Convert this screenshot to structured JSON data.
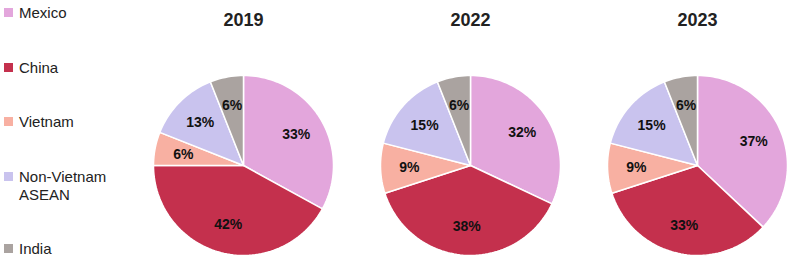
{
  "chart_data": {
    "type": "pie",
    "categories": [
      "Mexico",
      "China",
      "Vietnam",
      "Non-Vietnam ASEAN",
      "India"
    ],
    "colors": [
      "#e3a6dc",
      "#c4304d",
      "#f8b0a2",
      "#c9c3ee",
      "#aaa3a0"
    ],
    "series": [
      {
        "name": "2019",
        "values": [
          33,
          42,
          6,
          13,
          6
        ],
        "value_labels": [
          "33%",
          "42%",
          "6%",
          "13%",
          "6%"
        ]
      },
      {
        "name": "2022",
        "values": [
          32,
          38,
          9,
          15,
          6
        ],
        "value_labels": [
          "32%",
          "38%",
          "9%",
          "15%",
          "6%"
        ]
      },
      {
        "name": "2023",
        "values": [
          37,
          33,
          9,
          15,
          6
        ],
        "value_labels": [
          "37%",
          "33%",
          "9%",
          "15%",
          "6%"
        ]
      }
    ],
    "data_labels": true,
    "legend": "left"
  }
}
